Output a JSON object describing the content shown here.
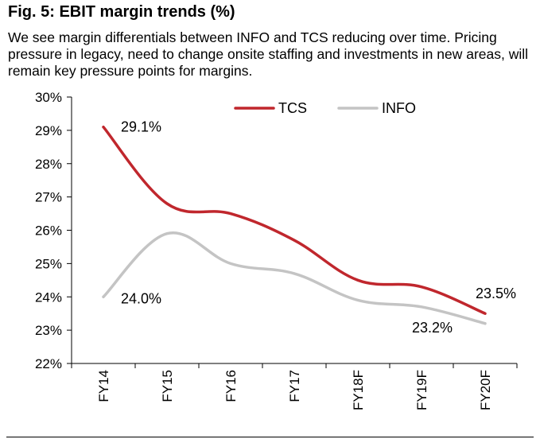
{
  "figure": {
    "title": "Fig. 5: EBIT margin trends (%)",
    "description": "We see margin differentials between INFO and TCS reducing over time. Pricing pressure in legacy, need to change onsite staffing and investments in new areas, will remain key pressure points for margins."
  },
  "chart_data": {
    "type": "line",
    "title": "Fig. 5: EBIT margin trends (%)",
    "xlabel": "",
    "ylabel": "",
    "categories": [
      "FY14",
      "FY15",
      "FY16",
      "FY17",
      "FY18F",
      "FY19F",
      "FY20F"
    ],
    "ylim": [
      22,
      30
    ],
    "yticks": [
      22,
      23,
      24,
      25,
      26,
      27,
      28,
      29,
      30
    ],
    "ytick_labels": [
      "22%",
      "23%",
      "24%",
      "25%",
      "26%",
      "27%",
      "28%",
      "29%",
      "30%"
    ],
    "grid": false,
    "legend_position": "top",
    "series": [
      {
        "name": "TCS",
        "color": "#c0272d",
        "values": [
          29.1,
          26.8,
          26.5,
          25.7,
          24.5,
          24.3,
          23.5
        ]
      },
      {
        "name": "INFO",
        "color": "#c4c4c4",
        "values": [
          24.0,
          25.9,
          25.0,
          24.7,
          23.9,
          23.7,
          23.2
        ]
      }
    ],
    "annotations": [
      {
        "series": "TCS",
        "index": 0,
        "text": "29.1%"
      },
      {
        "series": "INFO",
        "index": 0,
        "text": "24.0%"
      },
      {
        "series": "TCS",
        "index": 6,
        "text": "23.5%"
      },
      {
        "series": "INFO",
        "index": 6,
        "text": "23.2%"
      }
    ]
  }
}
